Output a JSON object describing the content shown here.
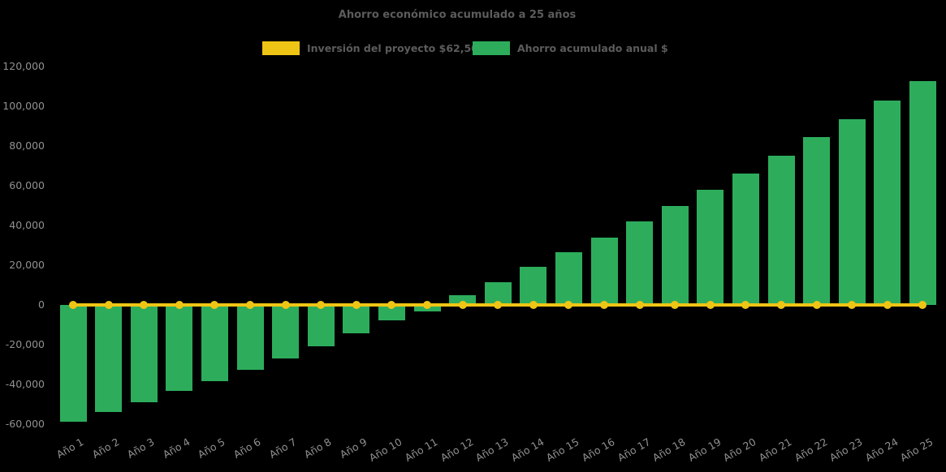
{
  "title": "Ahorro económico acumulado a 25 años",
  "colors": {
    "background": "#000000",
    "bar_green": "#2dad5c",
    "line_yellow": "#efc515",
    "title_text": "#5c5c5c",
    "tick_text": "#919191"
  },
  "chart_data": {
    "type": "bar",
    "title": "Ahorro económico acumulado a 25 años",
    "xlabel": "",
    "ylabel": "",
    "ylim": [
      -60000,
      120000
    ],
    "grid": false,
    "legend_position": "top",
    "categories": [
      "Año 1",
      "Año 2",
      "Año 3",
      "Año 4",
      "Año 5",
      "Año 6",
      "Año 7",
      "Año 8",
      "Año 9",
      "Año 10",
      "Año 11",
      "Año 12",
      "Año 13",
      "Año 14",
      "Año 15",
      "Año 16",
      "Año 17",
      "Año 18",
      "Año 19",
      "Año 20",
      "Año 21",
      "Año 22",
      "Año 23",
      "Año 24",
      "Año 25"
    ],
    "series": [
      {
        "name": "Ahorro acumulado anual $",
        "type": "bar",
        "color": "#2dad5c",
        "values": [
          -59000,
          -54000,
          -49000,
          -43500,
          -38500,
          -33000,
          -27000,
          -21000,
          -14500,
          -8000,
          -3500,
          5000,
          11500,
          19000,
          26500,
          34000,
          42000,
          50000,
          58000,
          66000,
          75000,
          84500,
          93500,
          103000,
          113000
        ]
      },
      {
        "name": "Inversión del proyecto $62,500.00",
        "type": "line",
        "color": "#efc515",
        "marker": "circle",
        "values": [
          0,
          0,
          0,
          0,
          0,
          0,
          0,
          0,
          0,
          0,
          0,
          0,
          0,
          0,
          0,
          0,
          0,
          0,
          0,
          0,
          0,
          0,
          0,
          0,
          0
        ]
      }
    ],
    "yticks": [
      {
        "value": 120000,
        "label": "120,000"
      },
      {
        "value": 100000,
        "label": "100,000"
      },
      {
        "value": 80000,
        "label": "80,000"
      },
      {
        "value": 60000,
        "label": "60,000"
      },
      {
        "value": 40000,
        "label": "40,000"
      },
      {
        "value": 20000,
        "label": "20,000"
      },
      {
        "value": 0,
        "label": "0"
      },
      {
        "value": -20000,
        "label": "-20,000"
      },
      {
        "value": -40000,
        "label": "-40,000"
      },
      {
        "value": -60000,
        "label": "-60,000"
      }
    ]
  }
}
